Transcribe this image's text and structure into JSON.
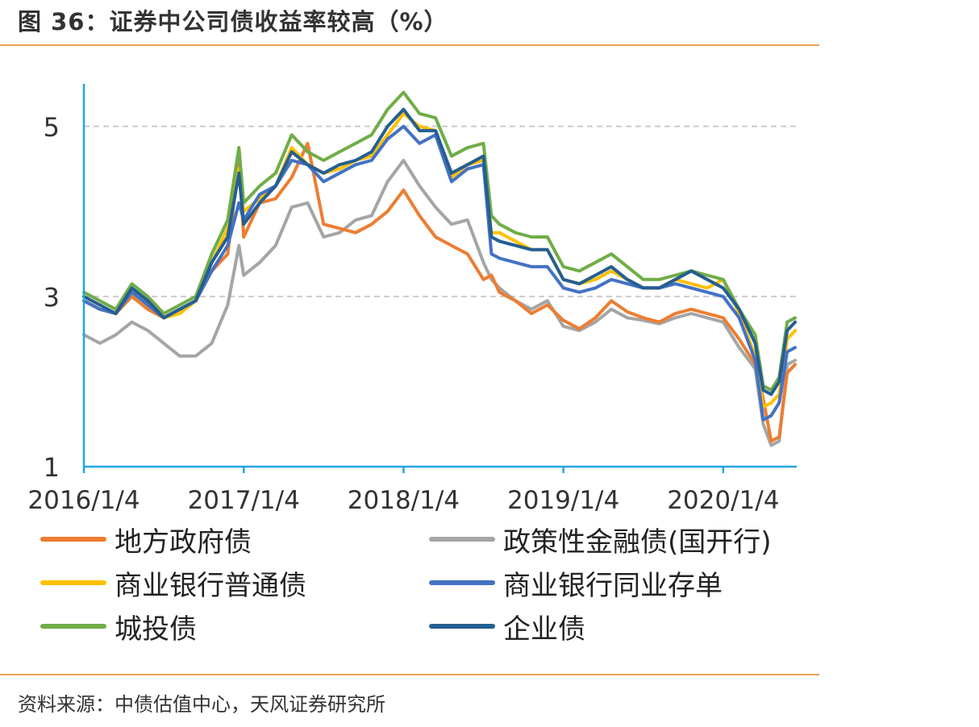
{
  "header": {
    "title": "图 36：证券中公司债收益率较高（%）"
  },
  "footer": {
    "source": "资料来源：中债估值中心，天风证券研究所"
  },
  "colors": {
    "rule": "#e8a15a",
    "axis": "#23a6e2",
    "grid": "#cccccc"
  },
  "chart_data": {
    "type": "line",
    "title": "证券中公司债收益率较高（%）",
    "xlabel": "",
    "ylabel": "",
    "ylim": [
      1,
      5.5
    ],
    "yticks": [
      1,
      3,
      5
    ],
    "xticks": [
      "2016/1/4",
      "2017/1/4",
      "2018/1/4",
      "2019/1/4",
      "2020/1/4"
    ],
    "x": [
      2016.0,
      2016.1,
      2016.2,
      2016.3,
      2016.4,
      2016.5,
      2016.6,
      2016.7,
      2016.8,
      2016.9,
      2016.97,
      2017.0,
      2017.1,
      2017.2,
      2017.3,
      2017.4,
      2017.5,
      2017.6,
      2017.7,
      2017.8,
      2017.9,
      2018.0,
      2018.1,
      2018.2,
      2018.3,
      2018.4,
      2018.5,
      2018.55,
      2018.6,
      2018.7,
      2018.8,
      2018.9,
      2019.0,
      2019.1,
      2019.2,
      2019.3,
      2019.4,
      2019.5,
      2019.6,
      2019.7,
      2019.8,
      2019.9,
      2020.0,
      2020.1,
      2020.2,
      2020.25,
      2020.3,
      2020.35,
      2020.4,
      2020.45
    ],
    "grid": true,
    "legend_position": "bottom",
    "series": [
      {
        "name": "地方政府债",
        "color": "#ed7d31",
        "values": [
          2.95,
          2.85,
          2.8,
          3.0,
          2.85,
          2.75,
          2.85,
          2.95,
          3.3,
          3.5,
          4.6,
          3.7,
          4.1,
          4.15,
          4.4,
          4.8,
          3.85,
          3.8,
          3.75,
          3.85,
          4.0,
          4.25,
          3.95,
          3.7,
          3.6,
          3.5,
          3.2,
          3.25,
          3.05,
          2.95,
          2.8,
          2.9,
          2.72,
          2.62,
          2.75,
          2.95,
          2.82,
          2.75,
          2.7,
          2.8,
          2.85,
          2.8,
          2.75,
          2.5,
          2.2,
          1.8,
          1.3,
          1.35,
          2.1,
          2.2
        ]
      },
      {
        "name": "政策性金融债(国开行)",
        "color": "#a5a5a5",
        "values": [
          2.55,
          2.45,
          2.55,
          2.7,
          2.6,
          2.45,
          2.3,
          2.3,
          2.45,
          2.9,
          3.6,
          3.25,
          3.4,
          3.6,
          4.05,
          4.1,
          3.7,
          3.75,
          3.9,
          3.95,
          4.35,
          4.6,
          4.3,
          4.05,
          3.85,
          3.9,
          3.4,
          3.2,
          3.1,
          2.95,
          2.85,
          2.95,
          2.65,
          2.6,
          2.7,
          2.85,
          2.75,
          2.72,
          2.68,
          2.75,
          2.8,
          2.75,
          2.7,
          2.4,
          2.15,
          1.5,
          1.25,
          1.3,
          2.2,
          2.25
        ]
      },
      {
        "name": "商业银行普通债",
        "color": "#ffc000",
        "values": [
          2.95,
          2.85,
          2.8,
          3.05,
          2.9,
          2.75,
          2.8,
          2.95,
          3.4,
          3.8,
          4.5,
          4.0,
          4.15,
          4.3,
          4.75,
          4.55,
          4.45,
          4.5,
          4.6,
          4.65,
          4.9,
          5.15,
          5.0,
          4.95,
          4.4,
          4.55,
          4.6,
          3.75,
          3.75,
          3.65,
          3.55,
          3.55,
          3.2,
          3.15,
          3.2,
          3.3,
          3.2,
          3.1,
          3.1,
          3.2,
          3.15,
          3.1,
          3.2,
          2.8,
          2.3,
          1.7,
          1.75,
          1.85,
          2.5,
          2.6
        ]
      },
      {
        "name": "商业银行同业存单",
        "color": "#4472c4",
        "values": [
          2.95,
          2.85,
          2.8,
          3.05,
          2.9,
          2.75,
          2.85,
          2.95,
          3.3,
          3.6,
          4.1,
          3.9,
          4.2,
          4.3,
          4.6,
          4.55,
          4.35,
          4.45,
          4.55,
          4.6,
          4.85,
          5.0,
          4.8,
          4.9,
          4.35,
          4.5,
          4.55,
          3.5,
          3.45,
          3.4,
          3.35,
          3.35,
          3.1,
          3.05,
          3.1,
          3.2,
          3.15,
          3.1,
          3.1,
          3.15,
          3.1,
          3.05,
          3.0,
          2.75,
          2.25,
          1.55,
          1.6,
          1.75,
          2.35,
          2.4
        ]
      },
      {
        "name": "城投债",
        "color": "#70ad47",
        "values": [
          3.05,
          2.95,
          2.85,
          3.15,
          3.0,
          2.8,
          2.9,
          3.0,
          3.5,
          3.9,
          4.75,
          4.1,
          4.3,
          4.45,
          4.9,
          4.7,
          4.6,
          4.7,
          4.8,
          4.9,
          5.2,
          5.4,
          5.15,
          5.1,
          4.65,
          4.75,
          4.8,
          3.95,
          3.85,
          3.75,
          3.7,
          3.7,
          3.35,
          3.3,
          3.4,
          3.5,
          3.35,
          3.2,
          3.2,
          3.25,
          3.3,
          3.25,
          3.2,
          2.85,
          2.55,
          1.95,
          1.9,
          2.05,
          2.7,
          2.75
        ]
      },
      {
        "name": "企业债",
        "color": "#255e91",
        "values": [
          3.0,
          2.9,
          2.8,
          3.1,
          2.95,
          2.75,
          2.85,
          2.95,
          3.4,
          3.7,
          4.45,
          3.85,
          4.1,
          4.3,
          4.7,
          4.55,
          4.45,
          4.55,
          4.6,
          4.7,
          5.0,
          5.2,
          4.95,
          4.95,
          4.45,
          4.55,
          4.65,
          3.7,
          3.65,
          3.6,
          3.55,
          3.55,
          3.2,
          3.15,
          3.25,
          3.35,
          3.2,
          3.1,
          3.1,
          3.2,
          3.3,
          3.2,
          3.1,
          2.85,
          2.45,
          1.9,
          1.85,
          2.0,
          2.6,
          2.7
        ]
      }
    ]
  }
}
